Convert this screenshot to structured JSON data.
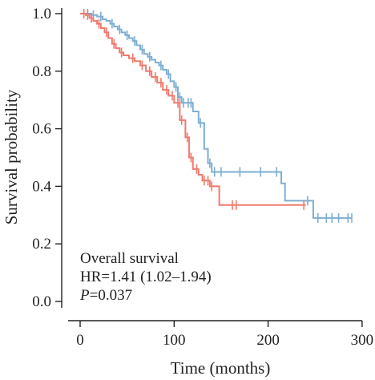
{
  "chart_data": {
    "type": "line",
    "subtype": "kaplan-meier",
    "xlabel": "Time (months)",
    "ylabel": "Survival probability",
    "xlim": [
      0,
      300
    ],
    "ylim": [
      0,
      1.0
    ],
    "xticks": [
      0,
      100,
      200,
      300
    ],
    "xtick_labels": [
      "0",
      "100",
      "200",
      "300"
    ],
    "yticks": [
      0.0,
      0.2,
      0.4,
      0.6,
      0.8,
      1.0
    ],
    "ytick_labels": [
      "0.0",
      "0.2",
      "0.4",
      "0.6",
      "0.8",
      "1.0"
    ],
    "grid": false,
    "annotation": {
      "line1": "Overall survival",
      "line2": "HR=1.41 (1.02–1.94)",
      "line3_italic": "P",
      "line3_rest": "=0.037"
    },
    "series": [
      {
        "color": "#7eaed3",
        "steps": [
          [
            0,
            1.0
          ],
          [
            12,
            0.995
          ],
          [
            18,
            0.99
          ],
          [
            24,
            0.98
          ],
          [
            28,
            0.975
          ],
          [
            32,
            0.965
          ],
          [
            36,
            0.955
          ],
          [
            40,
            0.945
          ],
          [
            44,
            0.935
          ],
          [
            48,
            0.925
          ],
          [
            52,
            0.915
          ],
          [
            56,
            0.905
          ],
          [
            60,
            0.89
          ],
          [
            64,
            0.875
          ],
          [
            68,
            0.86
          ],
          [
            72,
            0.85
          ],
          [
            76,
            0.84
          ],
          [
            80,
            0.83
          ],
          [
            84,
            0.82
          ],
          [
            88,
            0.805
          ],
          [
            92,
            0.79
          ],
          [
            96,
            0.765
          ],
          [
            100,
            0.745
          ],
          [
            104,
            0.71
          ],
          [
            108,
            0.69
          ],
          [
            120,
            0.66
          ],
          [
            126,
            0.62
          ],
          [
            132,
            0.53
          ],
          [
            136,
            0.48
          ],
          [
            140,
            0.45
          ],
          [
            214,
            0.41
          ],
          [
            218,
            0.35
          ],
          [
            248,
            0.29
          ],
          [
            289,
            0.29
          ]
        ],
        "censored": [
          [
            8,
            1.0
          ],
          [
            14,
            0.995
          ],
          [
            22,
            0.99
          ],
          [
            34,
            0.965
          ],
          [
            42,
            0.945
          ],
          [
            50,
            0.925
          ],
          [
            58,
            0.905
          ],
          [
            66,
            0.875
          ],
          [
            74,
            0.85
          ],
          [
            86,
            0.82
          ],
          [
            94,
            0.79
          ],
          [
            102,
            0.745
          ],
          [
            106,
            0.71
          ],
          [
            110,
            0.69
          ],
          [
            115,
            0.69
          ],
          [
            118,
            0.69
          ],
          [
            128,
            0.62
          ],
          [
            138,
            0.48
          ],
          [
            143,
            0.45
          ],
          [
            150,
            0.45
          ],
          [
            170,
            0.45
          ],
          [
            192,
            0.45
          ],
          [
            209,
            0.45
          ],
          [
            242,
            0.35
          ],
          [
            253,
            0.29
          ],
          [
            262,
            0.29
          ],
          [
            268,
            0.29
          ],
          [
            275,
            0.29
          ],
          [
            285,
            0.29
          ],
          [
            289,
            0.29
          ]
        ]
      },
      {
        "color": "#f07a6d",
        "steps": [
          [
            0,
            1.0
          ],
          [
            6,
            0.995
          ],
          [
            10,
            0.985
          ],
          [
            14,
            0.975
          ],
          [
            18,
            0.965
          ],
          [
            22,
            0.95
          ],
          [
            26,
            0.935
          ],
          [
            30,
            0.915
          ],
          [
            34,
            0.895
          ],
          [
            38,
            0.88
          ],
          [
            42,
            0.865
          ],
          [
            46,
            0.855
          ],
          [
            52,
            0.845
          ],
          [
            58,
            0.835
          ],
          [
            64,
            0.82
          ],
          [
            70,
            0.8
          ],
          [
            76,
            0.78
          ],
          [
            82,
            0.76
          ],
          [
            88,
            0.735
          ],
          [
            94,
            0.715
          ],
          [
            100,
            0.69
          ],
          [
            106,
            0.63
          ],
          [
            112,
            0.57
          ],
          [
            116,
            0.5
          ],
          [
            120,
            0.46
          ],
          [
            126,
            0.44
          ],
          [
            130,
            0.42
          ],
          [
            138,
            0.4
          ],
          [
            148,
            0.335
          ],
          [
            240,
            0.335
          ]
        ],
        "censored": [
          [
            4,
            1.0
          ],
          [
            8,
            0.995
          ],
          [
            12,
            0.985
          ],
          [
            20,
            0.965
          ],
          [
            28,
            0.935
          ],
          [
            36,
            0.895
          ],
          [
            44,
            0.865
          ],
          [
            56,
            0.845
          ],
          [
            66,
            0.82
          ],
          [
            74,
            0.8
          ],
          [
            80,
            0.78
          ],
          [
            86,
            0.76
          ],
          [
            92,
            0.735
          ],
          [
            98,
            0.715
          ],
          [
            104,
            0.69
          ],
          [
            108,
            0.63
          ],
          [
            114,
            0.57
          ],
          [
            118,
            0.5
          ],
          [
            124,
            0.46
          ],
          [
            132,
            0.42
          ],
          [
            136,
            0.42
          ],
          [
            140,
            0.4
          ],
          [
            162,
            0.335
          ],
          [
            166,
            0.335
          ],
          [
            238,
            0.335
          ]
        ]
      }
    ]
  }
}
